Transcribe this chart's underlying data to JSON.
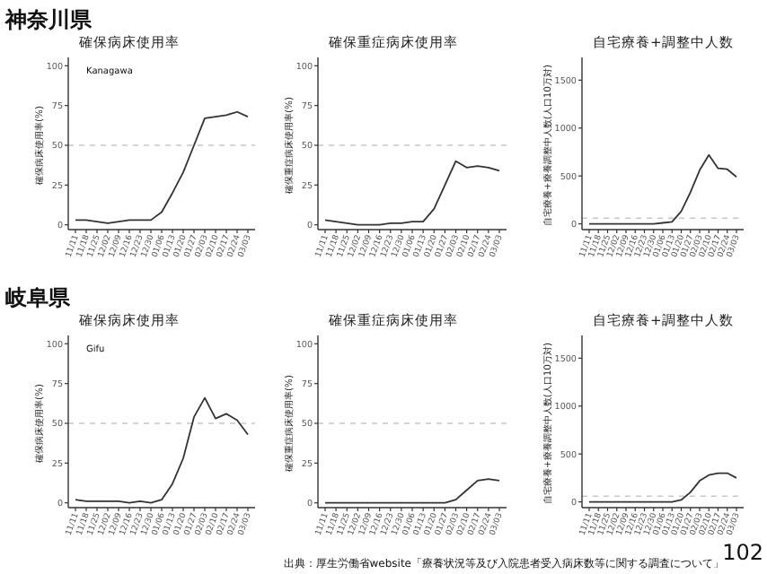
{
  "chart_data": [
    {
      "type": "line",
      "title": "確保病床使用率",
      "ylabel": "確保病床使用率(%)",
      "annotations": [
        "神奈川県",
        "Kanagawa"
      ],
      "categories": [
        "11/11",
        "11/18",
        "11/25",
        "12/02",
        "12/09",
        "12/16",
        "12/23",
        "12/30",
        "01/06",
        "01/13",
        "01/20",
        "01/27",
        "02/03",
        "02/10",
        "02/17",
        "02/24",
        "03/03"
      ],
      "series": [
        {
          "color": "#333333",
          "values": [
            3,
            3,
            2,
            1,
            2,
            3,
            3,
            3,
            8,
            20,
            33,
            50,
            67,
            68,
            69,
            71,
            68
          ]
        }
      ],
      "ylim": [
        -3,
        103
      ],
      "yticks": [
        0,
        25,
        50,
        75,
        100
      ],
      "ref_lines": [
        {
          "axis": "y",
          "value": 50,
          "color": "#c8c8c8",
          "line_style": "dashed"
        }
      ],
      "grid": false
    },
    {
      "type": "line",
      "title": "確保重症病床使用率",
      "ylabel": "確保重症病床使用率(%)",
      "categories": [
        "11/11",
        "11/18",
        "11/25",
        "12/02",
        "12/09",
        "12/16",
        "12/23",
        "12/30",
        "01/06",
        "01/13",
        "01/20",
        "01/27",
        "02/03",
        "02/10",
        "02/17",
        "02/24",
        "03/03"
      ],
      "series": [
        {
          "color": "#333333",
          "values": [
            3,
            2,
            1,
            0,
            0,
            0,
            1,
            1,
            2,
            2,
            10,
            25,
            40,
            36,
            37,
            36,
            34
          ]
        }
      ],
      "ylim": [
        -3,
        103
      ],
      "yticks": [
        0,
        25,
        50,
        75,
        100
      ],
      "ref_lines": [
        {
          "axis": "y",
          "value": 50,
          "color": "#c8c8c8",
          "line_style": "dashed"
        }
      ],
      "grid": false
    },
    {
      "type": "line",
      "title": "自宅療養+調整中人数",
      "ylabel": "自宅療養+療養調整中人数(人口10万対)",
      "categories": [
        "11/11",
        "11/18",
        "11/25",
        "12/02",
        "12/09",
        "12/16",
        "12/23",
        "12/30",
        "01/06",
        "01/13",
        "01/20",
        "01/27",
        "02/03",
        "02/10",
        "02/17",
        "02/24",
        "03/03"
      ],
      "series": [
        {
          "color": "#333333",
          "values": [
            0,
            0,
            0,
            0,
            0,
            0,
            0,
            0,
            10,
            20,
            130,
            330,
            560,
            720,
            580,
            570,
            490
          ]
        }
      ],
      "ylim": [
        -60,
        1700
      ],
      "yticks": [
        0,
        500,
        1000,
        1500
      ],
      "ref_lines": [
        {
          "axis": "y",
          "value": 60,
          "color": "#c8c8c8",
          "line_style": "dashed"
        }
      ],
      "grid": false
    },
    {
      "type": "line",
      "title": "確保病床使用率",
      "ylabel": "確保病床使用率(%)",
      "annotations": [
        "岐阜県",
        "Gifu"
      ],
      "categories": [
        "11/11",
        "11/18",
        "11/25",
        "12/02",
        "12/09",
        "12/16",
        "12/23",
        "12/30",
        "01/06",
        "01/13",
        "01/20",
        "01/27",
        "02/03",
        "02/10",
        "02/17",
        "02/24",
        "03/03"
      ],
      "series": [
        {
          "color": "#333333",
          "values": [
            2,
            1,
            1,
            1,
            1,
            0,
            1,
            0,
            2,
            12,
            28,
            54,
            66,
            53,
            56,
            52,
            43
          ]
        }
      ],
      "ylim": [
        -3,
        103
      ],
      "yticks": [
        0,
        25,
        50,
        75,
        100
      ],
      "ref_lines": [
        {
          "axis": "y",
          "value": 50,
          "color": "#c8c8c8",
          "line_style": "dashed"
        }
      ],
      "grid": false
    },
    {
      "type": "line",
      "title": "確保重症病床使用率",
      "ylabel": "確保重症病床使用率(%)",
      "categories": [
        "11/11",
        "11/18",
        "11/25",
        "12/02",
        "12/09",
        "12/16",
        "12/23",
        "12/30",
        "01/06",
        "01/13",
        "01/20",
        "01/27",
        "02/03",
        "02/10",
        "02/17",
        "02/24",
        "03/03"
      ],
      "series": [
        {
          "color": "#333333",
          "values": [
            0,
            0,
            0,
            0,
            0,
            0,
            0,
            0,
            0,
            0,
            0,
            0,
            2,
            8,
            14,
            15,
            14
          ]
        }
      ],
      "ylim": [
        -3,
        103
      ],
      "yticks": [
        0,
        25,
        50,
        75,
        100
      ],
      "ref_lines": [
        {
          "axis": "y",
          "value": 50,
          "color": "#c8c8c8",
          "line_style": "dashed"
        }
      ],
      "grid": false
    },
    {
      "type": "line",
      "title": "自宅療養+調整中人数",
      "ylabel": "自宅療養+療養調整中人数(人口10万対)",
      "annotations": [
        "出典：厚生労働省website「療養状況等及び入院患者受入病床数等に関する調査について」",
        "102"
      ],
      "categories": [
        "11/11",
        "11/18",
        "11/25",
        "12/02",
        "12/09",
        "12/16",
        "12/23",
        "12/30",
        "01/06",
        "01/13",
        "01/20",
        "01/27",
        "02/03",
        "02/10",
        "02/17",
        "02/24",
        "03/03"
      ],
      "series": [
        {
          "color": "#333333",
          "values": [
            0,
            0,
            0,
            0,
            0,
            0,
            0,
            0,
            0,
            0,
            20,
            100,
            220,
            280,
            300,
            300,
            250
          ]
        }
      ],
      "ylim": [
        -60,
        1700
      ],
      "yticks": [
        0,
        500,
        1000,
        1500
      ],
      "ref_lines": [
        {
          "axis": "y",
          "value": 60,
          "color": "#c8c8c8",
          "line_style": "dashed"
        }
      ],
      "grid": false
    }
  ]
}
